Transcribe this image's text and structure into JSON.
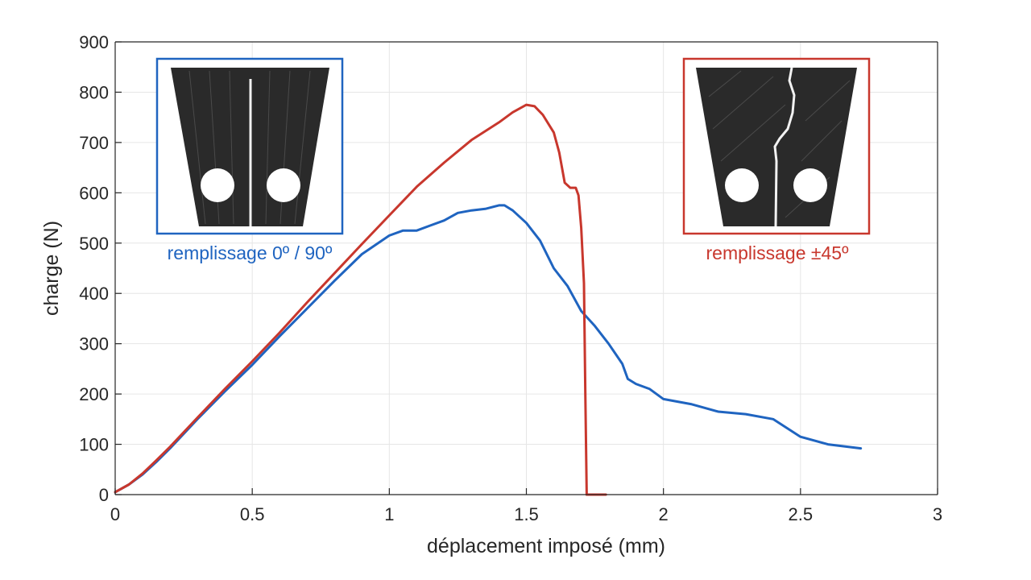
{
  "chart_data": {
    "type": "line",
    "xlabel": "déplacement imposé (mm)",
    "ylabel": "charge (N)",
    "xlim": [
      0,
      3
    ],
    "ylim": [
      0,
      900
    ],
    "xticks": [
      0,
      0.5,
      1,
      1.5,
      2,
      2.5,
      3
    ],
    "xtick_labels": [
      "0",
      "0.5",
      "1",
      "1.5",
      "2",
      "2.5",
      "3"
    ],
    "yticks": [
      0,
      100,
      200,
      300,
      400,
      500,
      600,
      700,
      800,
      900
    ],
    "ytick_labels": [
      "0",
      "100",
      "200",
      "300",
      "400",
      "500",
      "600",
      "700",
      "800",
      "900"
    ],
    "grid": true,
    "series": [
      {
        "color": "#1f64c0",
        "x": [
          0,
          0.05,
          0.1,
          0.15,
          0.2,
          0.3,
          0.4,
          0.5,
          0.6,
          0.7,
          0.8,
          0.9,
          1.0,
          1.05,
          1.1,
          1.15,
          1.2,
          1.25,
          1.3,
          1.35,
          1.4,
          1.42,
          1.45,
          1.5,
          1.55,
          1.6,
          1.65,
          1.7,
          1.75,
          1.8,
          1.85,
          1.87,
          1.9,
          1.95,
          2.0,
          2.1,
          2.2,
          2.3,
          2.4,
          2.5,
          2.6,
          2.72
        ],
        "y": [
          5,
          20,
          40,
          65,
          92,
          150,
          205,
          258,
          315,
          370,
          425,
          478,
          515,
          525,
          525,
          535,
          545,
          560,
          565,
          568,
          575,
          575,
          565,
          540,
          505,
          450,
          415,
          365,
          335,
          300,
          260,
          230,
          220,
          210,
          190,
          180,
          165,
          160,
          150,
          115,
          100,
          92
        ]
      },
      {
        "color": "#c8372d",
        "x": [
          0,
          0.05,
          0.1,
          0.15,
          0.2,
          0.3,
          0.4,
          0.5,
          0.6,
          0.7,
          0.8,
          0.9,
          1.0,
          1.1,
          1.2,
          1.3,
          1.4,
          1.45,
          1.5,
          1.53,
          1.56,
          1.6,
          1.62,
          1.64,
          1.66,
          1.68,
          1.69,
          1.7,
          1.71,
          1.715,
          1.72
        ],
        "y": [
          5,
          20,
          42,
          68,
          95,
          153,
          210,
          265,
          322,
          382,
          440,
          498,
          555,
          612,
          660,
          705,
          740,
          760,
          775,
          772,
          755,
          720,
          680,
          620,
          610,
          610,
          595,
          530,
          420,
          200,
          0
        ]
      },
      {
        "color": "#c8372d",
        "x": [
          1.72,
          1.75,
          1.79
        ],
        "y": [
          0,
          0,
          0
        ]
      }
    ],
    "annotations": [
      {
        "text": "remplissage 0º / 90º",
        "color": "#1f64c0"
      },
      {
        "text": "remplissage ±45º",
        "color": "#c8372d"
      }
    ]
  }
}
